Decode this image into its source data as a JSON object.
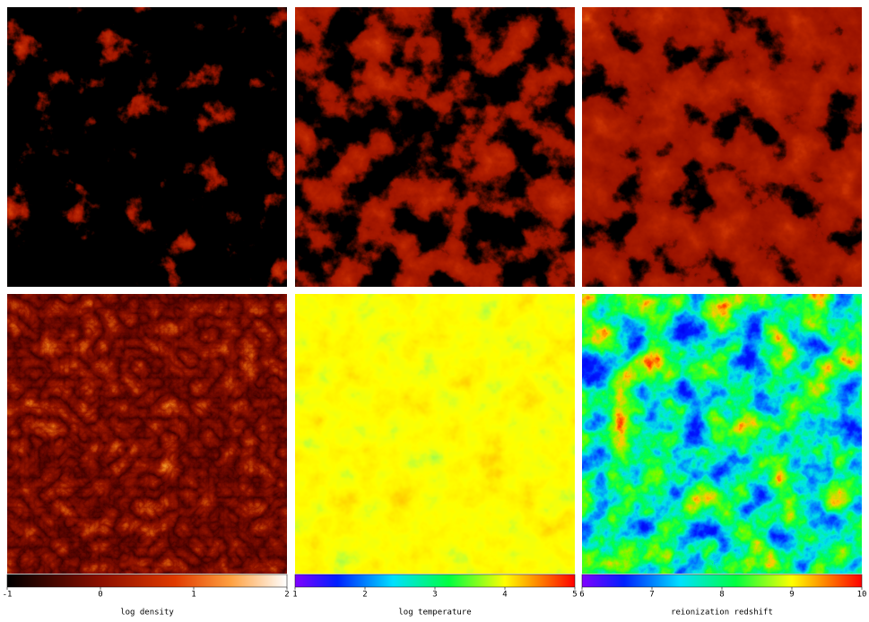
{
  "colorbars": [
    {
      "label": "log density",
      "ticks": [
        -1,
        0,
        1,
        2
      ]
    },
    {
      "label": "log temperature",
      "ticks": [
        1,
        2,
        3,
        4,
        5
      ]
    },
    {
      "label": "reionization redshift",
      "ticks": [
        6,
        7,
        8,
        9,
        10
      ]
    }
  ]
}
